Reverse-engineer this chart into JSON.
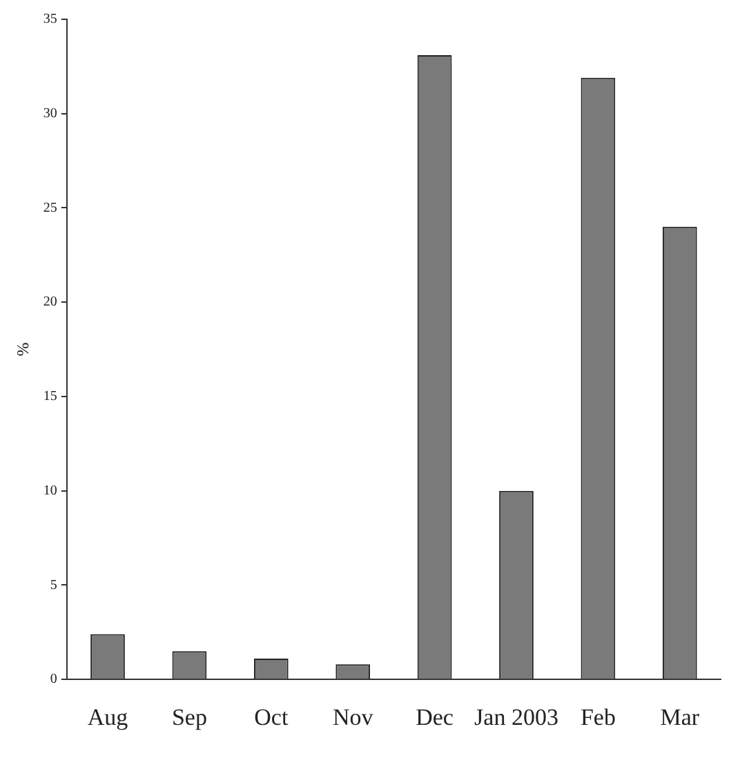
{
  "chart_data": {
    "type": "bar",
    "ylabel": "%",
    "categories": [
      "Aug",
      "Sep",
      "Oct",
      "Nov",
      "Dec",
      "Jan 2003",
      "Feb",
      "Mar"
    ],
    "values": [
      2.4,
      1.5,
      1.1,
      0.8,
      33.1,
      10.0,
      31.9,
      24.0
    ],
    "color": "#7a7a7a",
    "ylim": [
      0,
      35
    ],
    "yticks": [
      0,
      5,
      10,
      15,
      20,
      25,
      30,
      35
    ],
    "grid": false,
    "legend": false
  }
}
